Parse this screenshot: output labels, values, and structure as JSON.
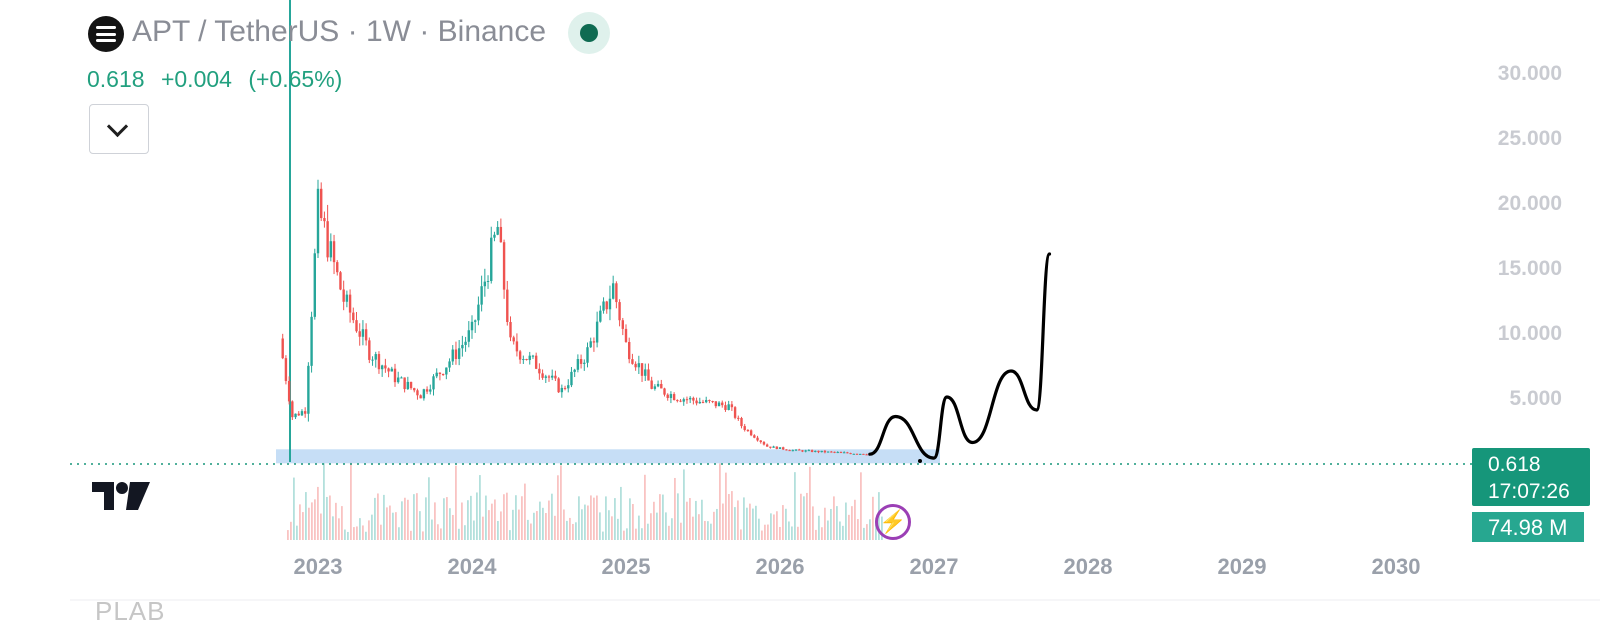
{
  "header": {
    "title": "APT / TetherUS · 1W · Binance",
    "last_price": "0.618",
    "change": "+0.004",
    "change_pct": "(+0.65%)",
    "logo_icon": "aptos-coin-icon",
    "live_indicator_icon": "market-open-dot-icon"
  },
  "price_tag": {
    "price": "0.618",
    "countdown": "17:07:26"
  },
  "volume_tag": {
    "value": "74.98 M"
  },
  "bottom_label": "PLAB",
  "colors": {
    "up": "#26a69a",
    "down": "#ef5350",
    "accent": "#16967a",
    "support_zone": "#bcd8f5",
    "drawing": "#000000"
  },
  "chart_data": {
    "type": "candlestick",
    "timeframe": "1W",
    "x_tick_labels": [
      "2023",
      "2024",
      "2025",
      "2026",
      "2027",
      "2028",
      "2029",
      "2030"
    ],
    "y_tick_labels": [
      "5.000",
      "10.000",
      "15.000",
      "20.000",
      "25.000",
      "30.000"
    ],
    "ylim": [
      0,
      30
    ],
    "current_price": 0.618,
    "price_series": [
      {
        "x": "2022-10",
        "y": 9.5
      },
      {
        "x": "2022-11",
        "y": 3.5
      },
      {
        "x": "2022-12",
        "y": 4.0
      },
      {
        "x": "2023-01",
        "y": 19.5
      },
      {
        "x": "2023-03",
        "y": 12.5
      },
      {
        "x": "2023-05",
        "y": 8.5
      },
      {
        "x": "2023-07",
        "y": 6.5
      },
      {
        "x": "2023-09",
        "y": 5.2
      },
      {
        "x": "2023-11",
        "y": 7.5
      },
      {
        "x": "2024-01",
        "y": 10.0
      },
      {
        "x": "2024-03",
        "y": 18.0
      },
      {
        "x": "2024-04",
        "y": 9.0
      },
      {
        "x": "2024-06",
        "y": 7.5
      },
      {
        "x": "2024-08",
        "y": 5.5
      },
      {
        "x": "2024-10",
        "y": 8.5
      },
      {
        "x": "2024-12",
        "y": 13.5
      },
      {
        "x": "2025-01",
        "y": 9.0
      },
      {
        "x": "2025-03",
        "y": 5.8
      },
      {
        "x": "2025-05",
        "y": 5.0
      },
      {
        "x": "2025-07",
        "y": 4.6
      },
      {
        "x": "2025-09",
        "y": 4.3
      },
      {
        "x": "2025-10",
        "y": 2.8
      },
      {
        "x": "2025-12",
        "y": 1.2
      },
      {
        "x": "2026-02",
        "y": 0.9
      },
      {
        "x": "2026-04",
        "y": 0.8
      },
      {
        "x": "2026-06",
        "y": 0.7
      },
      {
        "x": "2026-08",
        "y": 0.62
      }
    ],
    "support_zone": {
      "from": "2022-09",
      "to": "2027-01",
      "ymin": 0.0,
      "ymax": 0.9
    },
    "projection_drawing": [
      {
        "x": "2026-08",
        "y": 0.6
      },
      {
        "x": "2026-10",
        "y": 3.5
      },
      {
        "x": "2027-01",
        "y": 0.3
      },
      {
        "x": "2027-02",
        "y": 5.0
      },
      {
        "x": "2027-04",
        "y": 1.5
      },
      {
        "x": "2027-07",
        "y": 7.0
      },
      {
        "x": "2027-09",
        "y": 4.0
      },
      {
        "x": "2027-10",
        "y": 16.0
      }
    ],
    "grid": false
  }
}
